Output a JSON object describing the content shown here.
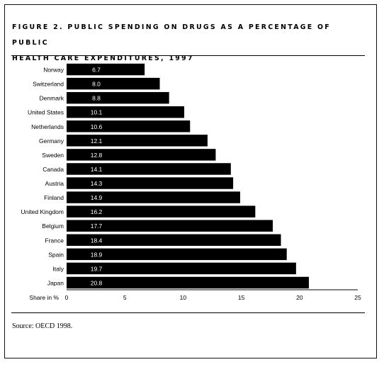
{
  "figure": {
    "title_line1": "FIGURE 2. PUBLIC SPENDING ON DRUGS AS A PERCENTAGE OF PUBLIC",
    "title_line2": "HEALTH CARE EXPENDITURES, 1997",
    "source": "Source: OECD 1998."
  },
  "chart_data": {
    "type": "bar",
    "orientation": "horizontal",
    "title": "FIGURE 2. PUBLIC SPENDING ON DRUGS AS A PERCENTAGE OF PUBLIC HEALTH CARE EXPENDITURES, 1997",
    "xlabel": "Share in %",
    "ylabel": "",
    "categories": [
      "Norway",
      "Switzerland",
      "Denmark",
      "United States",
      "Netherlands",
      "Germany",
      "Sweden",
      "Canada",
      "Austria",
      "Finland",
      "United Kingdom",
      "Belgium",
      "France",
      "Spain",
      "Italy",
      "Japan"
    ],
    "values": [
      6.7,
      8.0,
      8.8,
      10.1,
      10.6,
      12.1,
      12.8,
      14.1,
      14.3,
      14.9,
      16.2,
      17.7,
      18.4,
      18.9,
      19.7,
      20.8
    ],
    "value_labels": [
      "6.7",
      "8.0",
      "8.8",
      "10.1",
      "10.6",
      "12.1",
      "12.8",
      "14.1",
      "14.3",
      "14.9",
      "16.2",
      "17.7",
      "18.4",
      "18.9",
      "19.7",
      "20.8"
    ],
    "xticks": [
      0,
      5,
      10,
      15,
      20,
      25
    ],
    "xlim": [
      0,
      25
    ],
    "grid": false,
    "legend": "none",
    "colors": {
      "bar": "#000000",
      "value_label": "#ffffff",
      "text": "#000000"
    }
  }
}
